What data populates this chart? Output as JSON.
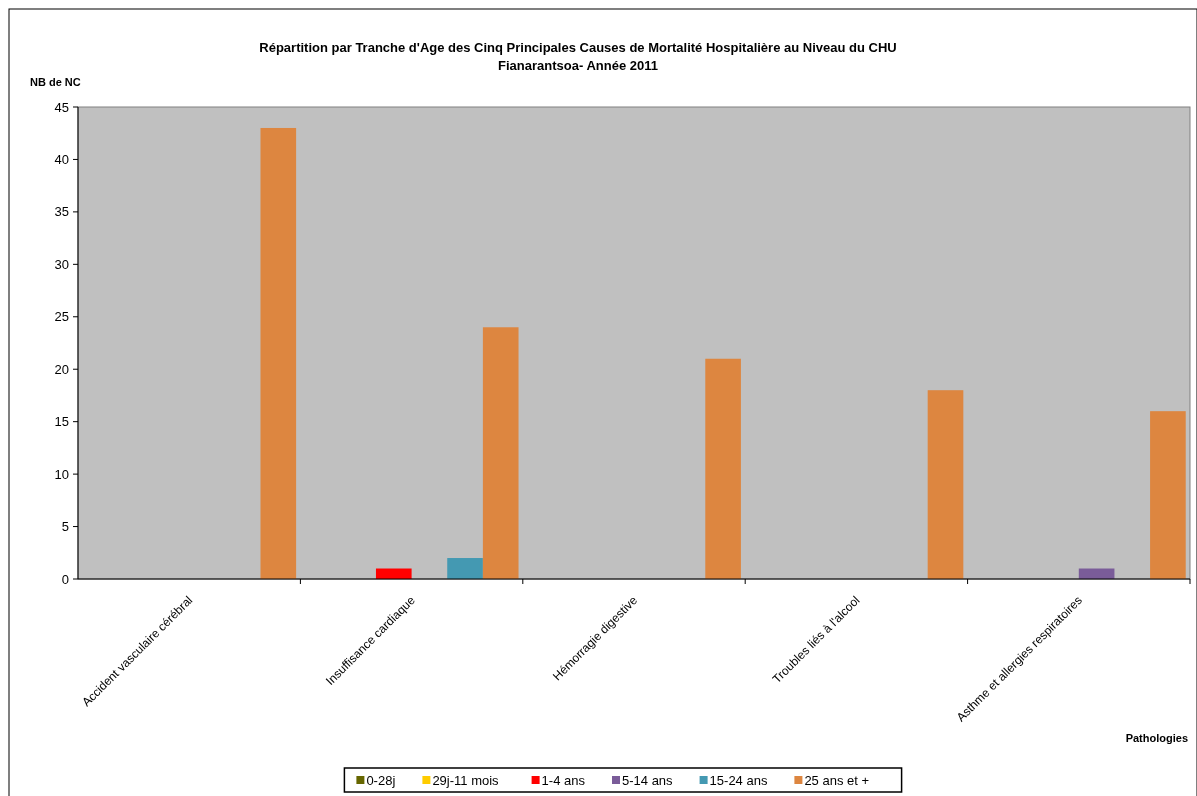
{
  "chart_data": {
    "type": "bar",
    "title": "Répartition par Tranche d'Age des Cinq Principales Causes de Mortalité Hospitalière au Niveau du CHU",
    "subtitle": "Fianarantsoa- Année 2011",
    "ylabel": "NB de NC",
    "xlabel": "Pathologies",
    "categories": [
      "Accident vasculaire cérébral",
      "Insuffisance cardiaque",
      "Hémorragie digestive",
      "Troubles liés à l'alcool",
      "Asthme et allergies respiratoires"
    ],
    "series": [
      {
        "name": "0-28j",
        "color": "#666600",
        "values": [
          0,
          0,
          0,
          0,
          0
        ]
      },
      {
        "name": "29j-11 mois",
        "color": "#ffcc00",
        "values": [
          0,
          0,
          0,
          0,
          0
        ]
      },
      {
        "name": "1-4 ans",
        "color": "#ff0000",
        "values": [
          0,
          1,
          0,
          0,
          0
        ]
      },
      {
        "name": "5-14 ans",
        "color": "#7a5c99",
        "values": [
          0,
          0,
          0,
          0,
          1
        ]
      },
      {
        "name": "15-24 ans",
        "color": "#4499b2",
        "values": [
          0,
          2,
          0,
          0,
          0
        ]
      },
      {
        "name": "25 ans et +",
        "color": "#dd8640",
        "values": [
          43,
          24,
          21,
          18,
          16
        ]
      }
    ],
    "ylim": [
      0,
      45
    ],
    "yticks": [
      0,
      5,
      10,
      15,
      20,
      25,
      30,
      35,
      40,
      45
    ],
    "grid": false,
    "legend": "bottom"
  }
}
